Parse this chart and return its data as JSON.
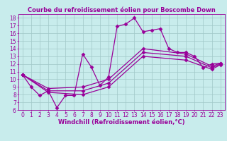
{
  "title": "Courbe du refroidissement éolien pour Boscombe Down",
  "xlabel": "Windchill (Refroidissement éolien,°C)",
  "bg_color": "#c8ecec",
  "grid_color": "#a0c8c8",
  "line_color": "#990099",
  "xlim": [
    -0.5,
    23.5
  ],
  "ylim": [
    6,
    18.5
  ],
  "xticks": [
    0,
    1,
    2,
    3,
    4,
    5,
    6,
    7,
    8,
    9,
    10,
    11,
    12,
    13,
    14,
    15,
    16,
    17,
    18,
    19,
    20,
    21,
    22,
    23
  ],
  "yticks": [
    6,
    7,
    8,
    9,
    10,
    11,
    12,
    13,
    14,
    15,
    16,
    17,
    18
  ],
  "line1_x": [
    0,
    1,
    2,
    3,
    4,
    5,
    6,
    7,
    8,
    9,
    10,
    11,
    12,
    13,
    14,
    15,
    16,
    17,
    18,
    19,
    20,
    21,
    22,
    23
  ],
  "line1_y": [
    10.6,
    9.0,
    7.9,
    8.5,
    6.3,
    7.9,
    7.9,
    13.3,
    11.6,
    9.2,
    10.3,
    16.9,
    17.2,
    18.0,
    16.2,
    16.4,
    16.6,
    14.0,
    13.5,
    13.5,
    13.0,
    11.5,
    12.0,
    12.1
  ],
  "line2_x": [
    0,
    3,
    7,
    10,
    14,
    19,
    22,
    23
  ],
  "line2_y": [
    10.6,
    8.8,
    9.0,
    10.0,
    14.0,
    13.3,
    11.7,
    12.1
  ],
  "line3_x": [
    0,
    3,
    7,
    10,
    14,
    19,
    22,
    23
  ],
  "line3_y": [
    10.6,
    8.5,
    8.5,
    9.5,
    13.5,
    13.0,
    11.5,
    12.0
  ],
  "line4_x": [
    0,
    3,
    7,
    10,
    14,
    19,
    22,
    23
  ],
  "line4_y": [
    10.6,
    8.3,
    8.0,
    9.0,
    13.0,
    12.5,
    11.3,
    11.9
  ],
  "marker": "D",
  "markersize": 2.5,
  "linewidth": 0.9,
  "title_fontsize": 6.0,
  "tick_fontsize": 5.5,
  "xlabel_fontsize": 6.0
}
